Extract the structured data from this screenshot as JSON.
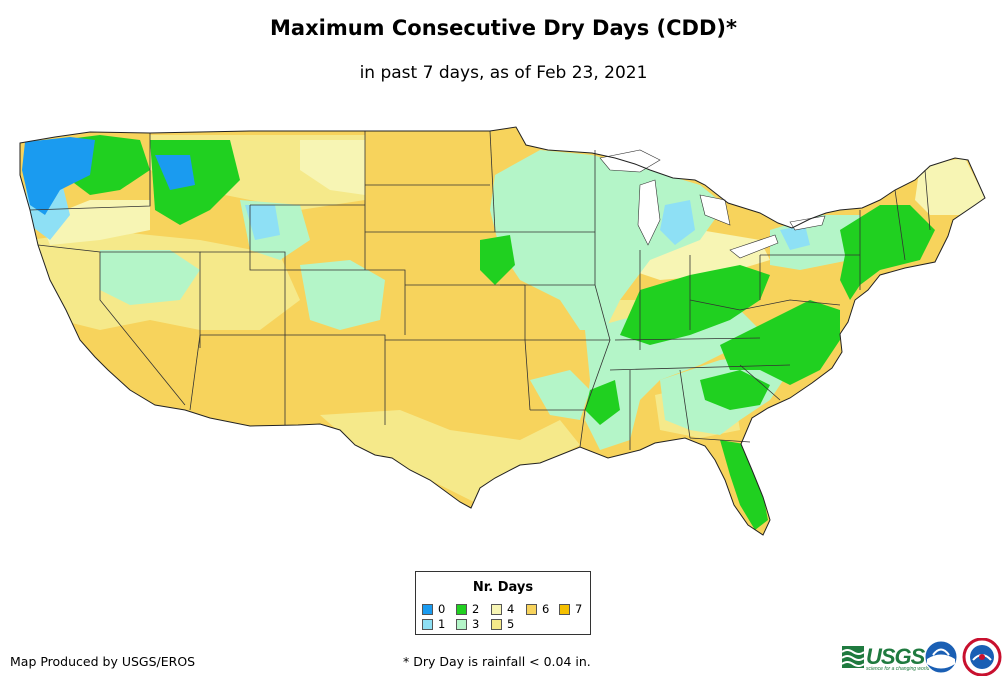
{
  "title": "Maximum Consecutive Dry Days (CDD)*",
  "subtitle": "in past 7 days, as of Feb 23, 2021",
  "legend": {
    "title": "Nr. Days",
    "items": [
      {
        "label": "0",
        "color": "#1a9bf0"
      },
      {
        "label": "1",
        "color": "#8ee0f5"
      },
      {
        "label": "2",
        "color": "#20d020"
      },
      {
        "label": "3",
        "color": "#b4f5c8"
      },
      {
        "label": "4",
        "color": "#f7f5b4"
      },
      {
        "label": "5",
        "color": "#f5e98a"
      },
      {
        "label": "6",
        "color": "#f7d35c"
      },
      {
        "label": "7",
        "color": "#f5c000"
      }
    ]
  },
  "credit": "Map Produced by USGS/EROS",
  "footnote": "* Dry Day is rainfall < 0.04 in.",
  "logos": {
    "usgs": "USGS",
    "usgs_tagline": "science for a changing world"
  }
}
